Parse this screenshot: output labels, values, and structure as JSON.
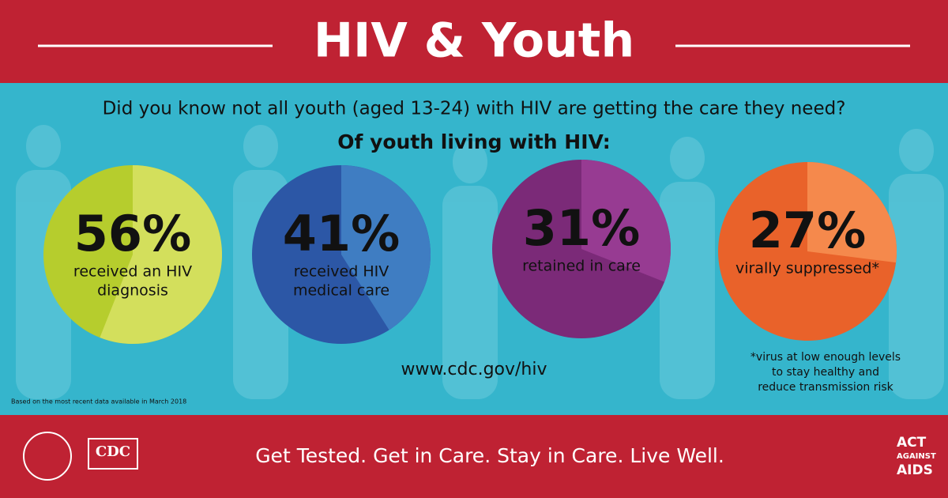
{
  "header": {
    "title": "HIV & Youth"
  },
  "intro": {
    "question": "Did you know not all youth (aged 13-24) with HIV are getting the care they need?",
    "lead": "Of youth living with HIV:"
  },
  "chart_data": {
    "type": "pie-stats",
    "stats": [
      {
        "value": 56,
        "value_label": "56%",
        "caption": [
          "received an HIV",
          "diagnosis"
        ],
        "color": "#d3df5c",
        "rest_color": "#b6cd2d"
      },
      {
        "value": 41,
        "value_label": "41%",
        "caption": [
          "received HIV",
          "medical care"
        ],
        "color": "#3f7dc2",
        "rest_color": "#2c57a6"
      },
      {
        "value": 31,
        "value_label": "31%",
        "caption": [
          "retained in care"
        ],
        "color": "#973b92",
        "rest_color": "#7b2a78"
      },
      {
        "value": 27,
        "value_label": "27%",
        "caption": [
          "virally suppressed*"
        ],
        "color": "#f5894c",
        "rest_color": "#e9622a"
      }
    ]
  },
  "url": "www.cdc.gov/hiv",
  "footnote": [
    "*virus at low enough levels",
    "to stay healthy and",
    "reduce transmission risk"
  ],
  "source_note": "Based on the most recent data available in March 2018",
  "footer": {
    "slogan": "Get Tested. Get in Care. Stay in Care. Live Well.",
    "cdc_logo": "CDC",
    "campaign_logo": [
      "ACT",
      "AGAINST",
      "AIDS"
    ]
  }
}
